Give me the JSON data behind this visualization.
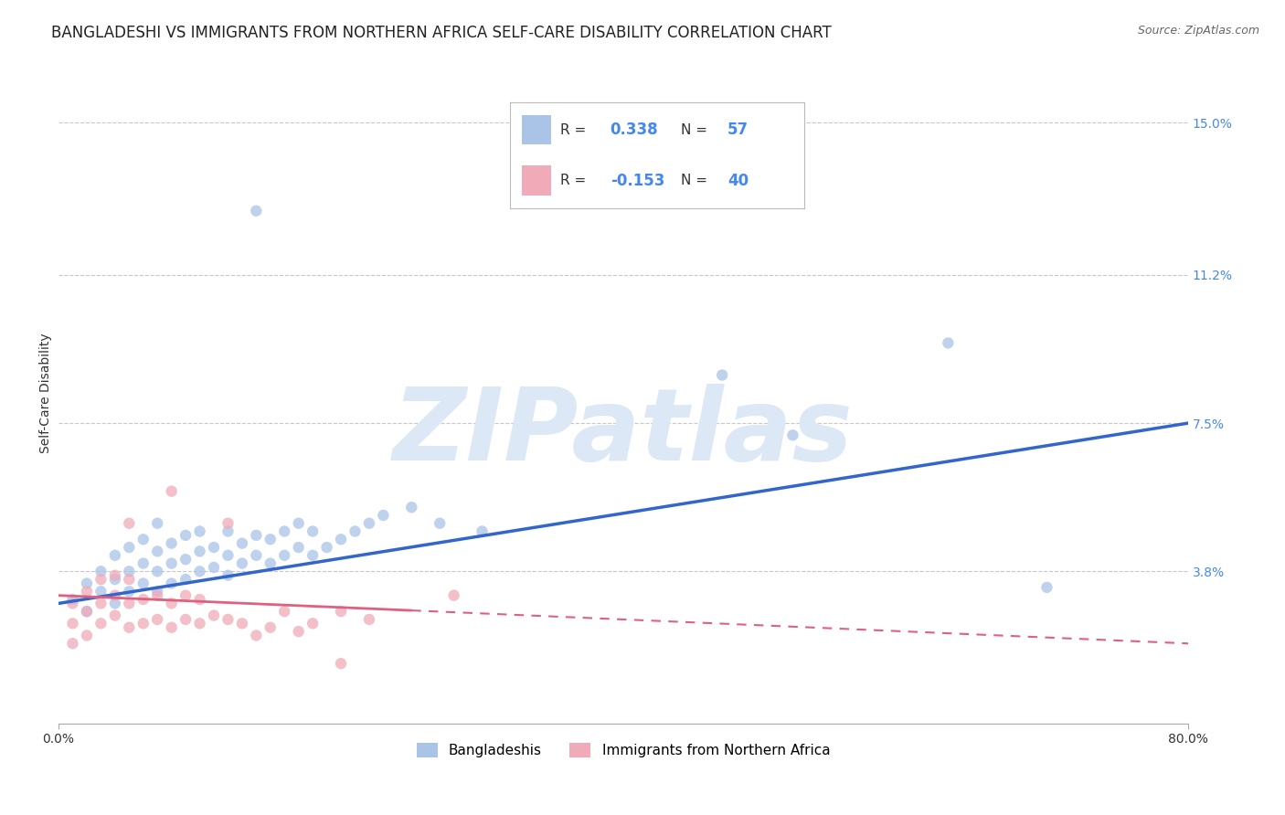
{
  "title": "BANGLADESHI VS IMMIGRANTS FROM NORTHERN AFRICA SELF-CARE DISABILITY CORRELATION CHART",
  "source": "Source: ZipAtlas.com",
  "ylabel": "Self-Care Disability",
  "xlim": [
    0.0,
    0.8
  ],
  "ylim": [
    0.0,
    0.165
  ],
  "yticks": [
    0.038,
    0.075,
    0.112,
    0.15
  ],
  "ytick_labels": [
    "3.8%",
    "7.5%",
    "11.2%",
    "15.0%"
  ],
  "xticks": [
    0.0,
    0.8
  ],
  "xtick_labels": [
    "0.0%",
    "80.0%"
  ],
  "grid_color": "#c8c8c8",
  "background_color": "#ffffff",
  "blue_scatter_color": "#aac4e8",
  "pink_scatter_color": "#f0aab8",
  "blue_line_color": "#3366cc",
  "pink_line_color": "#e06080",
  "R_blue": "0.338",
  "N_blue": "57",
  "R_pink": "-0.153",
  "N_pink": "40",
  "blue_line_x": [
    0.0,
    0.8
  ],
  "blue_line_y": [
    0.03,
    0.075
  ],
  "pink_line_x": [
    0.0,
    0.8
  ],
  "pink_line_y": [
    0.032,
    0.02
  ],
  "blue_scatter": [
    [
      0.01,
      0.031
    ],
    [
      0.02,
      0.028
    ],
    [
      0.02,
      0.035
    ],
    [
      0.03,
      0.033
    ],
    [
      0.03,
      0.038
    ],
    [
      0.04,
      0.03
    ],
    [
      0.04,
      0.036
    ],
    [
      0.04,
      0.042
    ],
    [
      0.05,
      0.033
    ],
    [
      0.05,
      0.038
    ],
    [
      0.05,
      0.044
    ],
    [
      0.06,
      0.035
    ],
    [
      0.06,
      0.04
    ],
    [
      0.06,
      0.046
    ],
    [
      0.07,
      0.033
    ],
    [
      0.07,
      0.038
    ],
    [
      0.07,
      0.043
    ],
    [
      0.07,
      0.05
    ],
    [
      0.08,
      0.035
    ],
    [
      0.08,
      0.04
    ],
    [
      0.08,
      0.045
    ],
    [
      0.09,
      0.036
    ],
    [
      0.09,
      0.041
    ],
    [
      0.09,
      0.047
    ],
    [
      0.1,
      0.038
    ],
    [
      0.1,
      0.043
    ],
    [
      0.1,
      0.048
    ],
    [
      0.11,
      0.039
    ],
    [
      0.11,
      0.044
    ],
    [
      0.12,
      0.037
    ],
    [
      0.12,
      0.042
    ],
    [
      0.12,
      0.048
    ],
    [
      0.13,
      0.04
    ],
    [
      0.13,
      0.045
    ],
    [
      0.14,
      0.042
    ],
    [
      0.14,
      0.047
    ],
    [
      0.15,
      0.04
    ],
    [
      0.15,
      0.046
    ],
    [
      0.16,
      0.042
    ],
    [
      0.16,
      0.048
    ],
    [
      0.17,
      0.044
    ],
    [
      0.17,
      0.05
    ],
    [
      0.18,
      0.042
    ],
    [
      0.18,
      0.048
    ],
    [
      0.19,
      0.044
    ],
    [
      0.2,
      0.046
    ],
    [
      0.21,
      0.048
    ],
    [
      0.22,
      0.05
    ],
    [
      0.23,
      0.052
    ],
    [
      0.25,
      0.054
    ],
    [
      0.27,
      0.05
    ],
    [
      0.3,
      0.048
    ],
    [
      0.14,
      0.128
    ],
    [
      0.47,
      0.087
    ],
    [
      0.52,
      0.072
    ],
    [
      0.63,
      0.095
    ],
    [
      0.7,
      0.034
    ]
  ],
  "pink_scatter": [
    [
      0.01,
      0.02
    ],
    [
      0.01,
      0.025
    ],
    [
      0.01,
      0.03
    ],
    [
      0.02,
      0.022
    ],
    [
      0.02,
      0.028
    ],
    [
      0.02,
      0.033
    ],
    [
      0.03,
      0.025
    ],
    [
      0.03,
      0.03
    ],
    [
      0.03,
      0.036
    ],
    [
      0.04,
      0.027
    ],
    [
      0.04,
      0.032
    ],
    [
      0.04,
      0.037
    ],
    [
      0.05,
      0.024
    ],
    [
      0.05,
      0.03
    ],
    [
      0.05,
      0.036
    ],
    [
      0.06,
      0.025
    ],
    [
      0.06,
      0.031
    ],
    [
      0.07,
      0.026
    ],
    [
      0.07,
      0.032
    ],
    [
      0.08,
      0.024
    ],
    [
      0.08,
      0.03
    ],
    [
      0.09,
      0.026
    ],
    [
      0.09,
      0.032
    ],
    [
      0.1,
      0.025
    ],
    [
      0.1,
      0.031
    ],
    [
      0.11,
      0.027
    ],
    [
      0.12,
      0.026
    ],
    [
      0.13,
      0.025
    ],
    [
      0.14,
      0.022
    ],
    [
      0.15,
      0.024
    ],
    [
      0.16,
      0.028
    ],
    [
      0.17,
      0.023
    ],
    [
      0.18,
      0.025
    ],
    [
      0.2,
      0.028
    ],
    [
      0.22,
      0.026
    ],
    [
      0.05,
      0.05
    ],
    [
      0.08,
      0.058
    ],
    [
      0.28,
      0.032
    ],
    [
      0.12,
      0.05
    ],
    [
      0.2,
      0.015
    ]
  ],
  "watermark_text": "ZIPatlas",
  "watermark_color": "#dce8f5",
  "watermark_fontsize": 80,
  "title_fontsize": 12,
  "tick_fontsize": 10,
  "tick_color": "#4488ee"
}
